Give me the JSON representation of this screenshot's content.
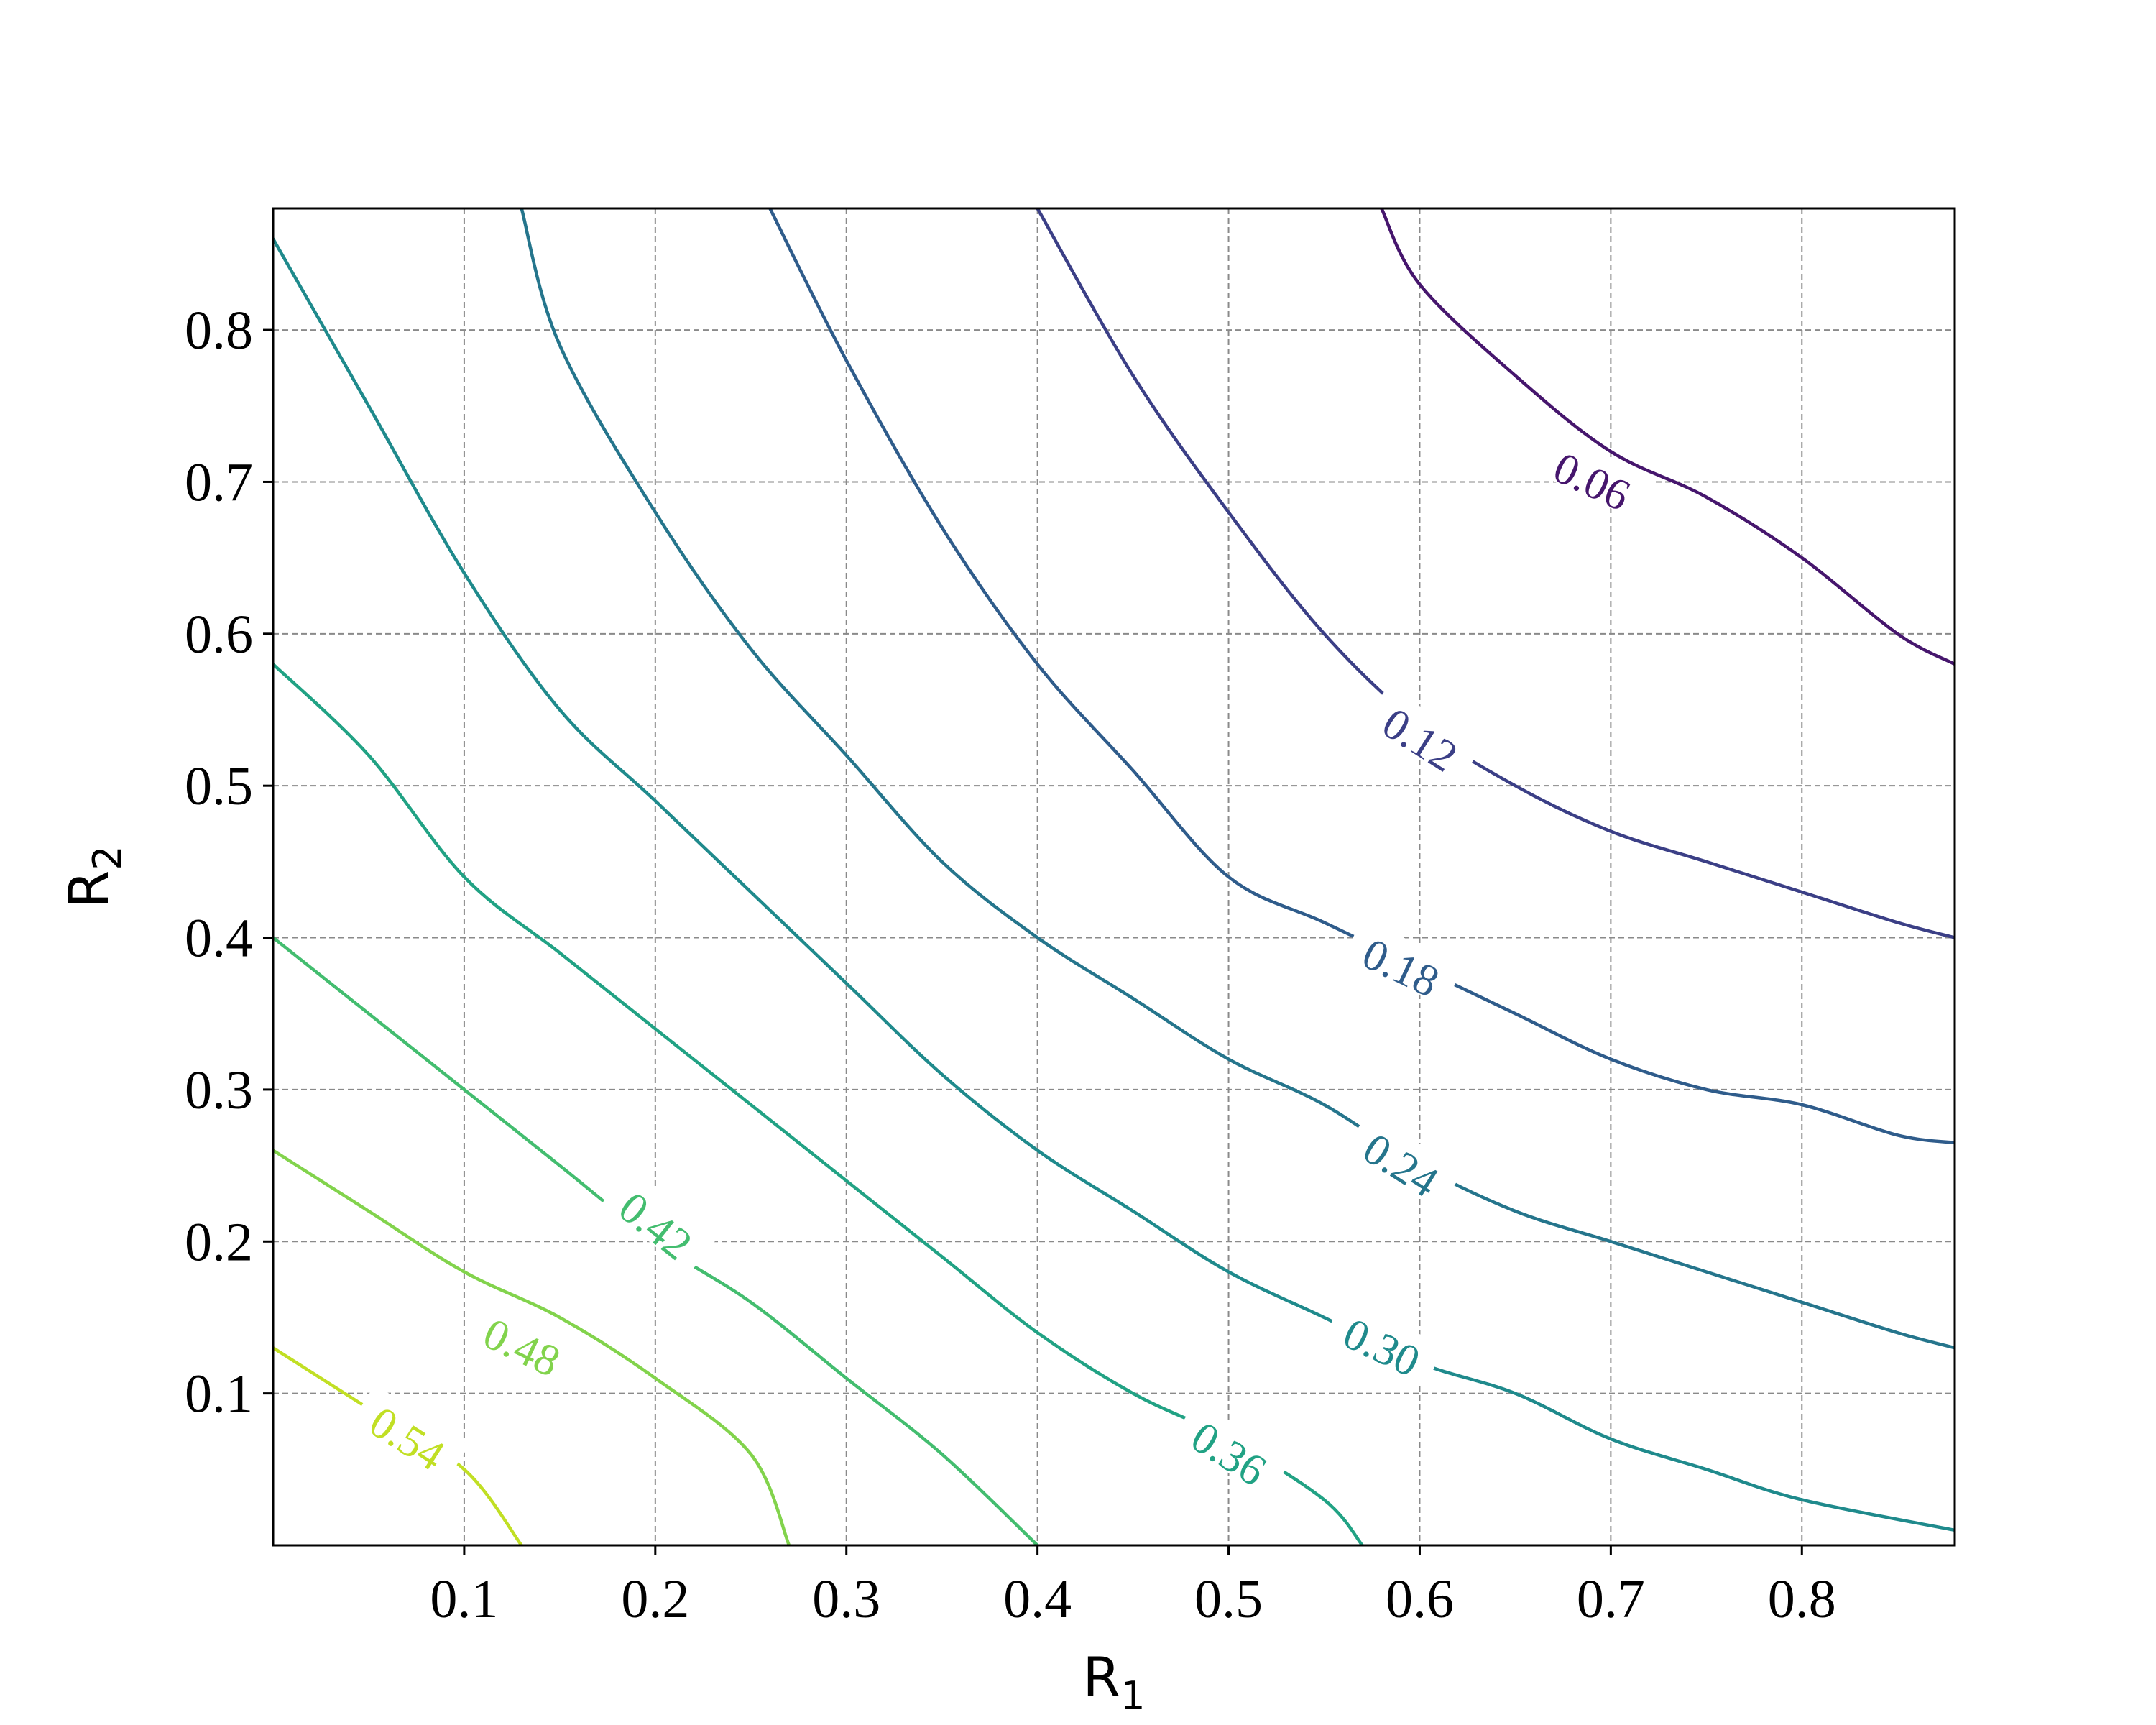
{
  "chart_data": {
    "type": "contour",
    "title": "",
    "xlabel": "R",
    "xlabel_sub": "1",
    "ylabel": "R",
    "ylabel_sub": "2",
    "xlim": [
      0.0,
      0.88
    ],
    "ylim": [
      0.0,
      0.88
    ],
    "x_ticks": [
      "0.1",
      "0.2",
      "0.3",
      "0.4",
      "0.5",
      "0.6",
      "0.7",
      "0.8"
    ],
    "y_ticks": [
      "0.1",
      "0.2",
      "0.3",
      "0.4",
      "0.5",
      "0.6",
      "0.7",
      "0.8"
    ],
    "x_tick_values": [
      0.1,
      0.2,
      0.3,
      0.4,
      0.5,
      0.6,
      0.7,
      0.8
    ],
    "y_tick_values": [
      0.1,
      0.2,
      0.3,
      0.4,
      0.5,
      0.6,
      0.7,
      0.8
    ],
    "grid": true,
    "colormap": "viridis",
    "levels": [
      {
        "label": "0.06",
        "value": 0.06,
        "color": "#46166d",
        "points": [
          [
            0.58,
            0.88
          ],
          [
            0.6,
            0.83
          ],
          [
            0.65,
            0.77
          ],
          [
            0.7,
            0.72
          ],
          [
            0.75,
            0.69
          ],
          [
            0.8,
            0.65
          ],
          [
            0.85,
            0.6
          ],
          [
            0.88,
            0.58
          ]
        ],
        "label_at": [
          0.69,
          0.7
        ]
      },
      {
        "label": "0.12",
        "value": 0.12,
        "color": "#3b3f86",
        "points": [
          [
            0.4,
            0.88
          ],
          [
            0.45,
            0.77
          ],
          [
            0.5,
            0.68
          ],
          [
            0.55,
            0.6
          ],
          [
            0.6,
            0.54
          ],
          [
            0.65,
            0.5
          ],
          [
            0.7,
            0.47
          ],
          [
            0.75,
            0.45
          ],
          [
            0.8,
            0.43
          ],
          [
            0.85,
            0.41
          ],
          [
            0.88,
            0.4
          ]
        ],
        "label_at": [
          0.6,
          0.53
        ]
      },
      {
        "label": "0.18",
        "value": 0.18,
        "color": "#2f5c8b",
        "points": [
          [
            0.26,
            0.88
          ],
          [
            0.3,
            0.78
          ],
          [
            0.35,
            0.67
          ],
          [
            0.4,
            0.58
          ],
          [
            0.45,
            0.51
          ],
          [
            0.5,
            0.44
          ],
          [
            0.55,
            0.41
          ],
          [
            0.6,
            0.38
          ],
          [
            0.65,
            0.35
          ],
          [
            0.7,
            0.32
          ],
          [
            0.75,
            0.3
          ],
          [
            0.8,
            0.29
          ],
          [
            0.85,
            0.27
          ],
          [
            0.88,
            0.265
          ]
        ],
        "label_at": [
          0.59,
          0.38
        ]
      },
      {
        "label": "0.24",
        "value": 0.24,
        "color": "#25758c",
        "points": [
          [
            0.13,
            0.88
          ],
          [
            0.15,
            0.79
          ],
          [
            0.2,
            0.68
          ],
          [
            0.25,
            0.59
          ],
          [
            0.3,
            0.52
          ],
          [
            0.35,
            0.45
          ],
          [
            0.4,
            0.4
          ],
          [
            0.45,
            0.36
          ],
          [
            0.5,
            0.32
          ],
          [
            0.55,
            0.29
          ],
          [
            0.6,
            0.25
          ],
          [
            0.65,
            0.22
          ],
          [
            0.7,
            0.2
          ],
          [
            0.75,
            0.18
          ],
          [
            0.8,
            0.16
          ],
          [
            0.85,
            0.14
          ],
          [
            0.88,
            0.13
          ]
        ],
        "label_at": [
          0.59,
          0.25
        ]
      },
      {
        "label": "0.30",
        "value": 0.3,
        "color": "#1f8a8c",
        "points": [
          [
            0.0,
            0.86
          ],
          [
            0.05,
            0.75
          ],
          [
            0.1,
            0.64
          ],
          [
            0.15,
            0.55
          ],
          [
            0.2,
            0.49
          ],
          [
            0.25,
            0.43
          ],
          [
            0.3,
            0.37
          ],
          [
            0.35,
            0.31
          ],
          [
            0.4,
            0.26
          ],
          [
            0.45,
            0.22
          ],
          [
            0.5,
            0.18
          ],
          [
            0.55,
            0.15
          ],
          [
            0.6,
            0.12
          ],
          [
            0.65,
            0.1
          ],
          [
            0.7,
            0.07
          ],
          [
            0.75,
            0.05
          ],
          [
            0.8,
            0.03
          ],
          [
            0.88,
            0.01
          ]
        ],
        "label_at": [
          0.58,
          0.13
        ]
      },
      {
        "label": "0.36",
        "value": 0.36,
        "color": "#21a284",
        "points": [
          [
            0.0,
            0.58
          ],
          [
            0.05,
            0.52
          ],
          [
            0.1,
            0.44
          ],
          [
            0.15,
            0.39
          ],
          [
            0.2,
            0.34
          ],
          [
            0.25,
            0.29
          ],
          [
            0.3,
            0.24
          ],
          [
            0.35,
            0.19
          ],
          [
            0.4,
            0.14
          ],
          [
            0.45,
            0.1
          ],
          [
            0.5,
            0.07
          ],
          [
            0.55,
            0.03
          ],
          [
            0.57,
            0.0
          ]
        ],
        "label_at": [
          0.5,
          0.06
        ]
      },
      {
        "label": "0.42",
        "value": 0.42,
        "color": "#43bd6f",
        "points": [
          [
            0.0,
            0.4
          ],
          [
            0.05,
            0.35
          ],
          [
            0.1,
            0.3
          ],
          [
            0.15,
            0.25
          ],
          [
            0.2,
            0.2
          ],
          [
            0.25,
            0.16
          ],
          [
            0.3,
            0.11
          ],
          [
            0.35,
            0.06
          ],
          [
            0.4,
            0.0
          ]
        ],
        "label_at": [
          0.2,
          0.21
        ]
      },
      {
        "label": "0.48",
        "value": 0.48,
        "color": "#82d34c",
        "points": [
          [
            0.0,
            0.26
          ],
          [
            0.05,
            0.22
          ],
          [
            0.1,
            0.18
          ],
          [
            0.15,
            0.15
          ],
          [
            0.2,
            0.11
          ],
          [
            0.25,
            0.06
          ],
          [
            0.27,
            0.0
          ]
        ],
        "label_at": [
          0.13,
          0.13
        ]
      },
      {
        "label": "0.54",
        "value": 0.54,
        "color": "#c1df24",
        "points": [
          [
            0.0,
            0.13
          ],
          [
            0.05,
            0.09
          ],
          [
            0.1,
            0.05
          ],
          [
            0.13,
            0.0
          ]
        ],
        "label_at": [
          0.07,
          0.07
        ]
      }
    ]
  }
}
